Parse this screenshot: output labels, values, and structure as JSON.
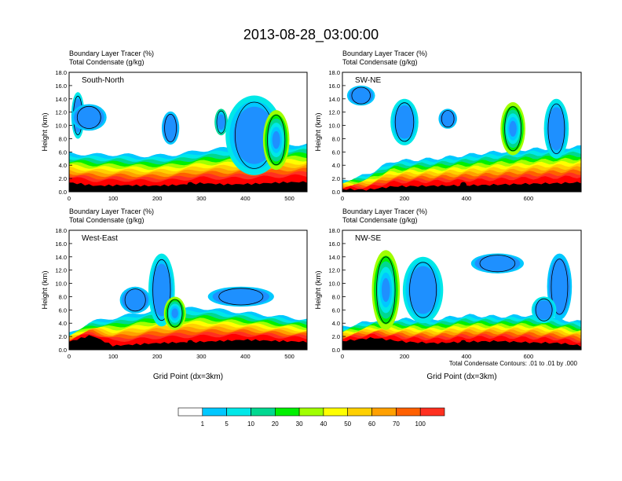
{
  "figure": {
    "title": "2013-08-28_03:00:00",
    "colorbar": {
      "colors": [
        "#ffffff",
        "#1e90ff",
        "#00c8ff",
        "#00e8e8",
        "#00d890",
        "#00f000",
        "#a0ff00",
        "#ffff00",
        "#ffd000",
        "#ffa000",
        "#ff6000",
        "#ff3020",
        "#ff0000"
      ],
      "labels": [
        "1",
        "5",
        "10",
        "20",
        "30",
        "40",
        "50",
        "60",
        "70",
        "100"
      ]
    },
    "footnote": "Total Condensate Contours: .01 to .01 by .000"
  },
  "chart_data": [
    {
      "type": "heatmap",
      "panel": "South-North",
      "subtitle_line1": "Boundary Layer Tracer   (%)",
      "subtitle_line2": "Total Condensate   (g/kg)",
      "ylabel": "Height (km)",
      "xlabel": "",
      "xlim": [
        0,
        540
      ],
      "ylim": [
        0,
        18
      ],
      "xticks": [
        "0",
        "100",
        "200",
        "300",
        "400",
        "500"
      ],
      "xtick_values": [
        0,
        100,
        200,
        300,
        400,
        500
      ],
      "yticks": [
        "0.0",
        "2.0",
        "4.0",
        "6.0",
        "8.0",
        "10.0",
        "12.0",
        "14.0",
        "16.0",
        "18.0"
      ],
      "terrain": [
        [
          0,
          1.4
        ],
        [
          60,
          0.9
        ],
        [
          120,
          1.0
        ],
        [
          180,
          0.9
        ],
        [
          240,
          1.0
        ],
        [
          300,
          1.3
        ],
        [
          360,
          1.1
        ],
        [
          420,
          1.2
        ],
        [
          480,
          1.4
        ],
        [
          540,
          1.5
        ]
      ],
      "pbl_top": [
        [
          0,
          5.8
        ],
        [
          60,
          5.6
        ],
        [
          120,
          5.6
        ],
        [
          180,
          5.4
        ],
        [
          240,
          5.6
        ],
        [
          300,
          6.2
        ],
        [
          360,
          6.6
        ],
        [
          420,
          6.9
        ],
        [
          480,
          7.0
        ],
        [
          540,
          7.2
        ]
      ],
      "blobs": [
        {
          "x": 20,
          "y": 11.5,
          "w": 30,
          "h": 7,
          "level": 3
        },
        {
          "x": 45,
          "y": 11.2,
          "w": 80,
          "h": 4,
          "level": 2
        },
        {
          "x": 230,
          "y": 9.6,
          "w": 40,
          "h": 5,
          "level": 2
        },
        {
          "x": 345,
          "y": 10.5,
          "w": 30,
          "h": 4,
          "level": 4
        },
        {
          "x": 420,
          "y": 8.5,
          "w": 130,
          "h": 12,
          "level": 3
        },
        {
          "x": 470,
          "y": 7.8,
          "w": 60,
          "h": 9,
          "level": 6
        }
      ],
      "marker_x": 275,
      "marker_y": 1.0
    },
    {
      "type": "heatmap",
      "panel": "SW-NE",
      "subtitle_line1": "Boundary Layer Tracer   (%)",
      "subtitle_line2": "Total Condensate   (g/kg)",
      "ylabel": "Height (km)",
      "xlabel": "",
      "xlim": [
        0,
        770
      ],
      "ylim": [
        0,
        18
      ],
      "xticks": [
        "0",
        "200",
        "400",
        "600"
      ],
      "xtick_values": [
        0,
        200,
        400,
        600
      ],
      "yticks": [
        "0.0",
        "2.0",
        "4.0",
        "6.0",
        "8.0",
        "10.0",
        "12.0",
        "14.0",
        "16.0",
        "18.0"
      ],
      "terrain": [
        [
          0,
          0.4
        ],
        [
          80,
          0.3
        ],
        [
          160,
          0.8
        ],
        [
          300,
          0.9
        ],
        [
          450,
          1.0
        ],
        [
          600,
          1.2
        ],
        [
          700,
          1.3
        ],
        [
          770,
          1.4
        ]
      ],
      "pbl_top": [
        [
          0,
          1.6
        ],
        [
          80,
          2.6
        ],
        [
          160,
          4.6
        ],
        [
          300,
          5.0
        ],
        [
          450,
          5.8
        ],
        [
          600,
          6.4
        ],
        [
          700,
          6.6
        ],
        [
          770,
          6.8
        ]
      ],
      "blobs": [
        {
          "x": 60,
          "y": 14.5,
          "w": 90,
          "h": 3,
          "level": 2
        },
        {
          "x": 200,
          "y": 10.5,
          "w": 90,
          "h": 7,
          "level": 3
        },
        {
          "x": 340,
          "y": 11.0,
          "w": 60,
          "h": 3,
          "level": 2
        },
        {
          "x": 550,
          "y": 9.5,
          "w": 80,
          "h": 8,
          "level": 6
        },
        {
          "x": 690,
          "y": 9.5,
          "w": 80,
          "h": 9,
          "level": 3
        }
      ],
      "marker_x": 390,
      "marker_y": 1.0
    },
    {
      "type": "heatmap",
      "panel": "West-East",
      "subtitle_line1": "Boundary Layer Tracer   (%)",
      "subtitle_line2": "Total Condensate   (g/kg)",
      "ylabel": "Height (km)",
      "xlabel": "Grid Point (dx=3km)",
      "xlim": [
        0,
        540
      ],
      "ylim": [
        0,
        18
      ],
      "xticks": [
        "0",
        "100",
        "200",
        "300",
        "400",
        "500"
      ],
      "xtick_values": [
        0,
        100,
        200,
        300,
        400,
        500
      ],
      "yticks": [
        "0.0",
        "2.0",
        "4.0",
        "6.0",
        "8.0",
        "10.0",
        "12.0",
        "14.0",
        "16.0",
        "18.0"
      ],
      "terrain": [
        [
          0,
          1.2
        ],
        [
          50,
          2.2
        ],
        [
          100,
          0.6
        ],
        [
          200,
          1.0
        ],
        [
          300,
          1.2
        ],
        [
          400,
          1.5
        ],
        [
          480,
          1.3
        ],
        [
          540,
          1.2
        ]
      ],
      "pbl_top": [
        [
          0,
          2.4
        ],
        [
          50,
          4.2
        ],
        [
          100,
          4.8
        ],
        [
          200,
          6.0
        ],
        [
          300,
          6.3
        ],
        [
          400,
          5.6
        ],
        [
          480,
          5.0
        ],
        [
          540,
          4.6
        ]
      ],
      "blobs": [
        {
          "x": 210,
          "y": 9.0,
          "w": 60,
          "h": 11,
          "level": 3
        },
        {
          "x": 150,
          "y": 7.5,
          "w": 70,
          "h": 4,
          "level": 2
        },
        {
          "x": 390,
          "y": 8.0,
          "w": 150,
          "h": 3,
          "level": 2
        },
        {
          "x": 240,
          "y": 5.5,
          "w": 50,
          "h": 5,
          "level": 6
        }
      ],
      "marker_x": 275,
      "marker_y": 1.0
    },
    {
      "type": "heatmap",
      "panel": "NW-SE",
      "subtitle_line1": "Boundary Layer Tracer   (%)",
      "subtitle_line2": "Total Condensate   (g/kg)",
      "ylabel": "Height (km)",
      "xlabel": "Grid Point (dx=3km)",
      "xlim": [
        0,
        770
      ],
      "ylim": [
        0,
        18
      ],
      "xticks": [
        "0",
        "200",
        "400",
        "600"
      ],
      "xtick_values": [
        0,
        200,
        400,
        600
      ],
      "yticks": [
        "0.0",
        "2.0",
        "4.0",
        "6.0",
        "8.0",
        "10.0",
        "12.0",
        "14.0",
        "16.0",
        "18.0"
      ],
      "terrain": [
        [
          0,
          1.3
        ],
        [
          100,
          1.8
        ],
        [
          200,
          1.2
        ],
        [
          300,
          1.0
        ],
        [
          400,
          1.2
        ],
        [
          500,
          1.3
        ],
        [
          600,
          1.1
        ],
        [
          700,
          1.0
        ],
        [
          770,
          0.6
        ]
      ],
      "pbl_top": [
        [
          0,
          3.4
        ],
        [
          100,
          4.4
        ],
        [
          200,
          4.6
        ],
        [
          300,
          4.6
        ],
        [
          400,
          5.2
        ],
        [
          500,
          5.0
        ],
        [
          600,
          5.2
        ],
        [
          700,
          4.6
        ],
        [
          770,
          4.2
        ]
      ],
      "blobs": [
        {
          "x": 140,
          "y": 9.0,
          "w": 90,
          "h": 12,
          "level": 6
        },
        {
          "x": 260,
          "y": 9.0,
          "w": 130,
          "h": 10,
          "level": 3
        },
        {
          "x": 500,
          "y": 13.0,
          "w": 170,
          "h": 3,
          "level": 2
        },
        {
          "x": 700,
          "y": 9.5,
          "w": 80,
          "h": 10,
          "level": 2
        },
        {
          "x": 650,
          "y": 6.0,
          "w": 80,
          "h": 4,
          "level": 3
        }
      ],
      "marker_x": 390,
      "marker_y": 1.0
    }
  ]
}
